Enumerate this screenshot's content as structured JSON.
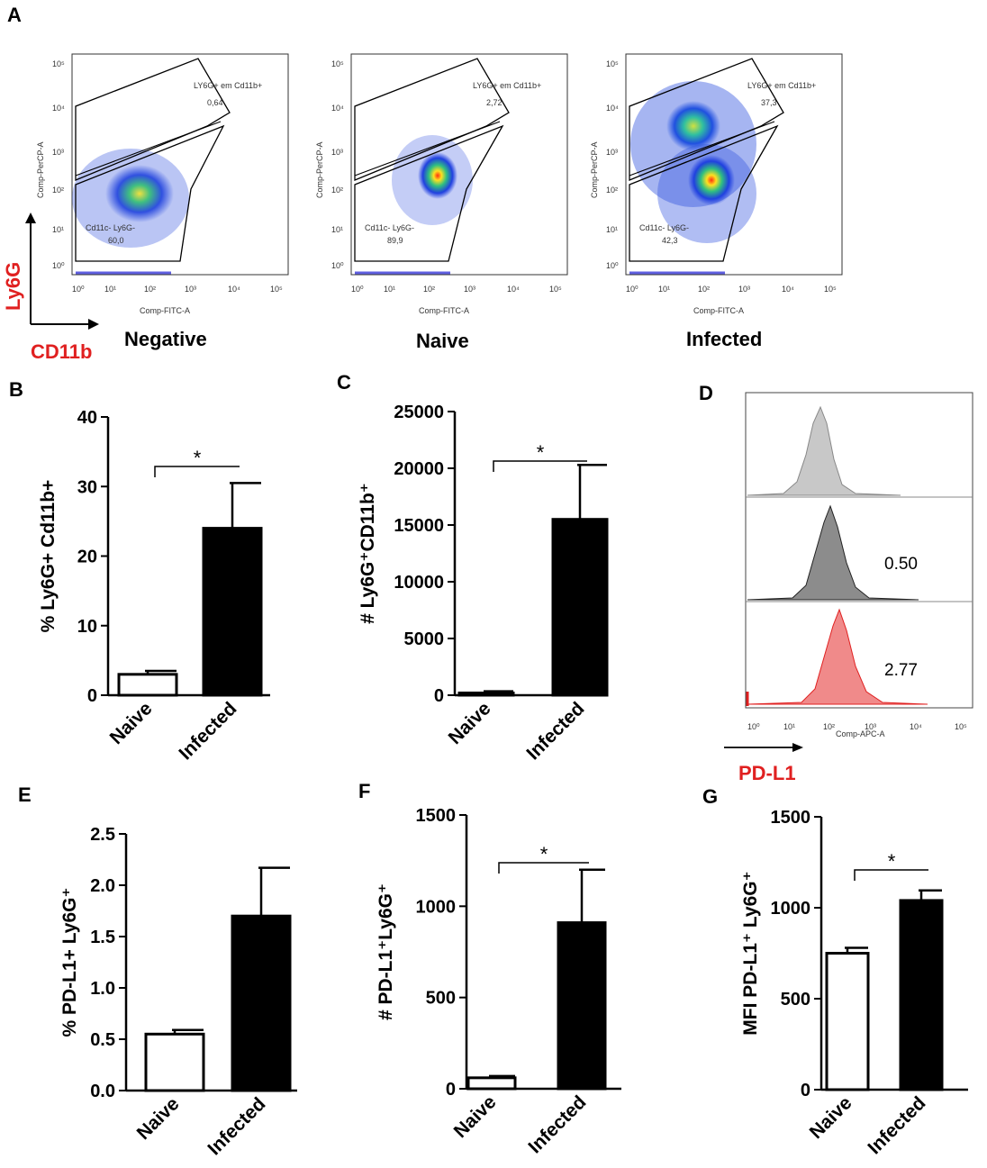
{
  "panel_labels": [
    "A",
    "B",
    "C",
    "D",
    "E",
    "F",
    "G"
  ],
  "flow": {
    "y_axis_title": "Comp-PerCP-A",
    "x_axis_title": "Comp-FITC-A",
    "log_ticks": [
      "10⁰",
      "10¹",
      "10²",
      "10³",
      "10⁴",
      "10⁵"
    ],
    "plots": [
      {
        "condition": "Negative",
        "upper_gate": "LY6G+ em Cd11b+",
        "upper_value": "0,64",
        "lower_gate": "Cd11c- Ly6G-",
        "lower_value": "60,0"
      },
      {
        "condition": "Naive",
        "upper_gate": "LY6G+ em Cd11b+",
        "upper_value": "2,72",
        "lower_gate": "Cd11c- Ly6G-",
        "lower_value": "89,9"
      },
      {
        "condition": "Infected",
        "upper_gate": "LY6G+ em Cd11b+",
        "upper_value": "37,3",
        "lower_gate": "Cd11c- Ly6G-",
        "lower_value": "42,3"
      }
    ],
    "marker_y": "Ly6G",
    "marker_x": "CD11b"
  },
  "histogram": {
    "x_axis_title": "Comp-APC-A",
    "marker": "PD-L1",
    "values": [
      "0.50",
      "2.77"
    ],
    "colors": {
      "top": "#c8c8c8",
      "mid": "#8c8c8c",
      "bottom": "#f08a8a"
    }
  },
  "chart_data": [
    {
      "panel": "B",
      "type": "bar",
      "categories": [
        "Naive",
        "Infected"
      ],
      "values": [
        3,
        24
      ],
      "errors": [
        0.5,
        6.5
      ],
      "ylabel": "% Ly6G+ Cd11b+",
      "ylim": [
        0,
        40
      ],
      "yticks": [
        "0",
        "10",
        "20",
        "30",
        "40"
      ],
      "significance": "*"
    },
    {
      "panel": "C",
      "type": "bar",
      "categories": [
        "Naive",
        "Infected"
      ],
      "values": [
        200,
        15500
      ],
      "errors": [
        150,
        4800
      ],
      "ylabel": "# Ly6G⁺CD11b⁺",
      "ylim": [
        0,
        25000
      ],
      "yticks": [
        "0",
        "5000",
        "10000",
        "15000",
        "20000",
        "25000"
      ],
      "significance": "*"
    },
    {
      "panel": "E",
      "type": "bar",
      "categories": [
        "Naive",
        "Infected"
      ],
      "values": [
        0.55,
        1.7
      ],
      "errors": [
        0.04,
        0.47
      ],
      "ylabel": "% PD-L1+ Ly6G⁺",
      "ylim": [
        0,
        2.5
      ],
      "yticks": [
        "0.0",
        "0.5",
        "1.0",
        "1.5",
        "2.0",
        "2.5"
      ],
      "significance": ""
    },
    {
      "panel": "F",
      "type": "bar",
      "categories": [
        "Naive",
        "Infected"
      ],
      "values": [
        60,
        910
      ],
      "errors": [
        10,
        290
      ],
      "ylabel": "# PD-L1⁺Ly6G⁺",
      "ylim": [
        0,
        1500
      ],
      "yticks": [
        "0",
        "500",
        "1000",
        "1500"
      ],
      "significance": "*"
    },
    {
      "panel": "G",
      "type": "bar",
      "categories": [
        "Naive",
        "Infected"
      ],
      "values": [
        750,
        1040
      ],
      "errors": [
        30,
        55
      ],
      "ylabel": "MFI PD-L1⁺ Ly6G⁺",
      "ylim": [
        0,
        1500
      ],
      "yticks": [
        "0",
        "500",
        "1000",
        "1500"
      ],
      "significance": "*"
    }
  ]
}
